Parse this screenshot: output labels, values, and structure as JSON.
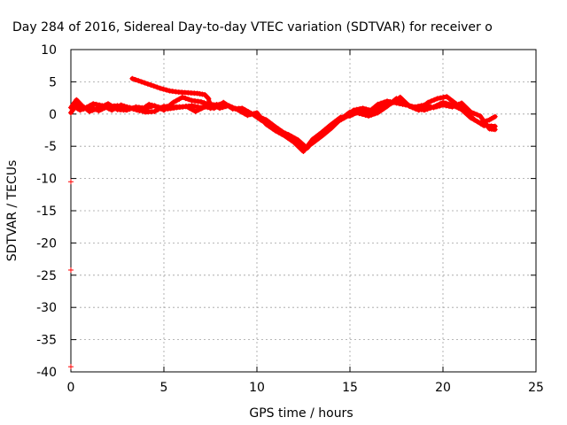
{
  "chart_data": {
    "type": "scatter",
    "title": "Day 284 of 2016, Sidereal Day-to-day VTEC variation (SDTVAR) for receiver o",
    "xlabel": "GPS time / hours",
    "ylabel": "SDTVAR / TECUs",
    "xlim": [
      0,
      25
    ],
    "ylim": [
      -40,
      10
    ],
    "x_ticks": [
      0,
      5,
      10,
      15,
      20,
      25
    ],
    "y_ticks": [
      10,
      5,
      0,
      -5,
      -10,
      -15,
      -20,
      -25,
      -30,
      -35,
      -40
    ],
    "grid": true,
    "marker": "plus",
    "series": [
      {
        "color": "#ff0000",
        "traces": [
          [
            [
              0,
              1.0
            ],
            [
              0.3,
              2.2
            ],
            [
              0.6,
              1.3
            ],
            [
              1.0,
              0.4
            ],
            [
              1.5,
              0.9
            ],
            [
              2.0,
              1.6
            ],
            [
              2.5,
              0.7
            ],
            [
              3.0,
              0.6
            ],
            [
              3.5,
              1.1
            ],
            [
              4.0,
              0.9
            ],
            [
              4.5,
              1.3
            ],
            [
              5.0,
              0.6
            ],
            [
              5.5,
              1.8
            ],
            [
              6.0,
              2.6
            ],
            [
              6.5,
              2.1
            ],
            [
              7.0,
              1.9
            ],
            [
              7.5,
              1.4
            ],
            [
              8.0,
              1.5
            ],
            [
              8.5,
              1.2
            ],
            [
              9.0,
              0.7
            ],
            [
              9.5,
              0.3
            ],
            [
              10.0,
              -0.3
            ],
            [
              10.5,
              -0.9
            ],
            [
              11.0,
              -2.0
            ],
            [
              11.5,
              -3.0
            ],
            [
              12.0,
              -4.2
            ],
            [
              12.5,
              -5.5
            ],
            [
              13.0,
              -4.5
            ],
            [
              13.5,
              -3.4
            ],
            [
              14.0,
              -2.2
            ],
            [
              14.5,
              -0.8
            ],
            [
              15.0,
              0.3
            ],
            [
              15.5,
              0.1
            ],
            [
              16.0,
              -0.3
            ],
            [
              16.5,
              0.2
            ],
            [
              17.0,
              1.2
            ],
            [
              17.5,
              2.4
            ],
            [
              18.0,
              1.6
            ],
            [
              18.5,
              0.9
            ],
            [
              19.0,
              0.6
            ],
            [
              19.5,
              1.1
            ],
            [
              20.0,
              1.8
            ],
            [
              20.5,
              1.4
            ],
            [
              21.0,
              0.7
            ],
            [
              21.5,
              -0.6
            ],
            [
              22.0,
              -1.4
            ],
            [
              22.5,
              -0.9
            ],
            [
              22.8,
              -0.4
            ]
          ],
          [
            [
              0,
              0.2
            ],
            [
              0.3,
              1.4
            ],
            [
              0.7,
              0.8
            ],
            [
              1.2,
              1.6
            ],
            [
              1.7,
              1.3
            ],
            [
              2.2,
              0.6
            ],
            [
              2.7,
              1.4
            ],
            [
              3.2,
              0.9
            ],
            [
              3.7,
              0.5
            ],
            [
              4.2,
              1.5
            ],
            [
              4.7,
              1.1
            ],
            [
              5.2,
              0.8
            ],
            [
              5.7,
              1.0
            ],
            [
              6.2,
              1.2
            ],
            [
              6.7,
              0.4
            ],
            [
              7.2,
              1.1
            ],
            [
              7.7,
              0.9
            ],
            [
              8.2,
              1.8
            ],
            [
              8.7,
              0.8
            ],
            [
              9.2,
              0.9
            ],
            [
              9.7,
              0.1
            ],
            [
              10.2,
              -0.9
            ],
            [
              10.7,
              -1.8
            ],
            [
              11.2,
              -2.6
            ],
            [
              11.7,
              -3.2
            ],
            [
              12.2,
              -4.0
            ],
            [
              12.7,
              -5.3
            ],
            [
              13.2,
              -3.6
            ],
            [
              13.7,
              -2.6
            ],
            [
              14.2,
              -1.4
            ],
            [
              14.7,
              -0.6
            ],
            [
              15.2,
              0.6
            ],
            [
              15.7,
              0.9
            ],
            [
              16.2,
              0.5
            ],
            [
              16.7,
              1.2
            ],
            [
              17.2,
              1.6
            ],
            [
              17.7,
              2.6
            ],
            [
              18.2,
              1.2
            ],
            [
              18.7,
              0.6
            ],
            [
              19.2,
              1.8
            ],
            [
              19.7,
              2.4
            ],
            [
              20.2,
              2.7
            ],
            [
              20.7,
              1.6
            ],
            [
              21.2,
              0.4
            ],
            [
              21.7,
              -0.9
            ],
            [
              22.2,
              -1.8
            ],
            [
              22.8,
              -1.9
            ]
          ],
          [
            [
              3.3,
              5.5
            ],
            [
              3.8,
              5.0
            ],
            [
              4.3,
              4.5
            ],
            [
              4.8,
              4.0
            ],
            [
              5.3,
              3.6
            ],
            [
              5.8,
              3.4
            ],
            [
              6.3,
              3.3
            ],
            [
              6.8,
              3.2
            ],
            [
              7.2,
              3.0
            ],
            [
              7.4,
              2.4
            ],
            [
              7.5,
              0.9
            ]
          ],
          [
            [
              0.1,
              1.3
            ],
            [
              0.5,
              0.6
            ],
            [
              1.0,
              1.2
            ],
            [
              1.5,
              0.5
            ],
            [
              2.0,
              1.2
            ],
            [
              2.5,
              1.3
            ],
            [
              3.0,
              1.1
            ],
            [
              3.5,
              0.8
            ],
            [
              4.0,
              0.3
            ],
            [
              4.5,
              0.4
            ],
            [
              5.0,
              1.2
            ],
            [
              5.5,
              1.1
            ],
            [
              6.0,
              1.1
            ],
            [
              6.5,
              1.3
            ],
            [
              7.0,
              1.0
            ],
            [
              7.5,
              1.6
            ],
            [
              8.0,
              0.9
            ],
            [
              8.5,
              1.3
            ],
            [
              9.0,
              0.6
            ],
            [
              9.5,
              -0.2
            ],
            [
              10.0,
              0.2
            ],
            [
              10.5,
              -1.6
            ],
            [
              11.0,
              -2.6
            ],
            [
              11.5,
              -3.4
            ],
            [
              12.0,
              -4.4
            ],
            [
              12.5,
              -5.8
            ],
            [
              13.0,
              -3.9
            ],
            [
              13.5,
              -2.8
            ],
            [
              14.0,
              -1.6
            ],
            [
              14.5,
              -0.5
            ],
            [
              15.0,
              -0.3
            ],
            [
              15.5,
              0.4
            ],
            [
              16.0,
              0.3
            ],
            [
              16.5,
              1.5
            ],
            [
              17.0,
              2.0
            ],
            [
              17.5,
              1.7
            ],
            [
              18.0,
              1.4
            ],
            [
              18.5,
              1.1
            ],
            [
              19.0,
              1.4
            ],
            [
              19.5,
              1.0
            ],
            [
              20.0,
              1.4
            ],
            [
              20.5,
              1.1
            ],
            [
              21.0,
              1.7
            ],
            [
              21.5,
              0.3
            ],
            [
              22.0,
              -0.3
            ],
            [
              22.5,
              -2.3
            ],
            [
              22.8,
              -2.4
            ]
          ]
        ],
        "points": [
          [
            0,
            -10.5
          ],
          [
            0,
            -24.2
          ],
          [
            0,
            -39.2
          ]
        ]
      }
    ]
  }
}
